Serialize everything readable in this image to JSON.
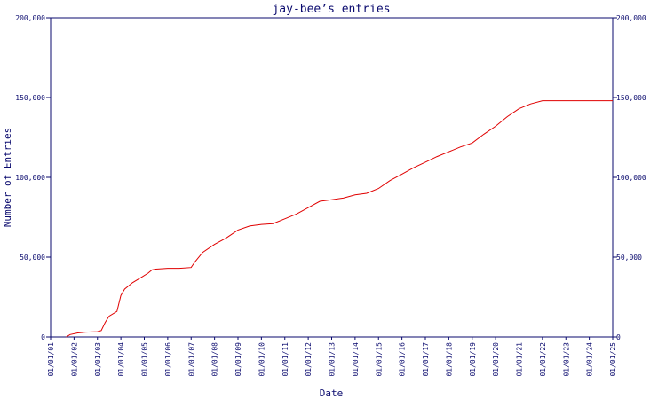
{
  "chart_data": {
    "type": "line",
    "title": "jay-bee’s entries",
    "xlabel": "Date",
    "ylabel": "Number of Entries",
    "ylim": [
      0,
      200000
    ],
    "yticks": [
      0,
      50000,
      100000,
      150000,
      200000
    ],
    "ytick_labels": [
      "0",
      "50,000",
      "100,000",
      "150,000",
      "200,000"
    ],
    "y_axis_mirrored_right": true,
    "xlim": [
      "2001-01-01",
      "2025-01-01"
    ],
    "xtick_labels": [
      "01/01/01",
      "01/01/02",
      "01/01/03",
      "01/01/04",
      "01/01/05",
      "01/01/06",
      "01/01/07",
      "01/01/08",
      "01/01/09",
      "01/01/10",
      "01/01/11",
      "01/01/12",
      "01/01/13",
      "01/01/14",
      "01/01/15",
      "01/01/16",
      "01/01/17",
      "01/01/18",
      "01/01/19",
      "01/01/20",
      "01/01/21",
      "01/01/22",
      "01/01/23",
      "01/01/24",
      "01/01/25"
    ],
    "grid": false,
    "line_color": "#e00000",
    "axis_color": "#0a0a6e",
    "x": [
      "2001-09-01",
      "2001-11-01",
      "2002-03-01",
      "2002-07-01",
      "2003-01-01",
      "2003-03-01",
      "2003-05-01",
      "2003-07-01",
      "2003-11-01",
      "2004-01-01",
      "2004-03-01",
      "2004-07-01",
      "2004-11-01",
      "2005-03-01",
      "2005-05-01",
      "2005-07-01",
      "2006-01-01",
      "2006-07-01",
      "2007-01-01",
      "2007-03-01",
      "2007-07-01",
      "2008-01-01",
      "2008-07-01",
      "2009-01-01",
      "2009-07-01",
      "2010-01-01",
      "2010-07-01",
      "2011-01-01",
      "2011-07-01",
      "2012-01-01",
      "2012-07-01",
      "2013-01-01",
      "2013-07-01",
      "2014-01-01",
      "2014-07-01",
      "2015-01-01",
      "2015-07-01",
      "2016-01-01",
      "2016-07-01",
      "2017-01-01",
      "2017-07-01",
      "2018-01-01",
      "2018-07-01",
      "2019-01-01",
      "2019-07-01",
      "2020-01-01",
      "2020-07-01",
      "2021-01-01",
      "2021-07-01",
      "2022-01-01",
      "2022-07-01",
      "2023-01-01",
      "2023-07-01",
      "2024-01-01",
      "2024-07-01",
      "2025-01-01"
    ],
    "values": [
      0,
      1500,
      2500,
      3000,
      3300,
      4000,
      9000,
      13000,
      16000,
      26000,
      30000,
      34000,
      37000,
      40000,
      42000,
      42500,
      43000,
      43000,
      43500,
      47000,
      53000,
      58000,
      62000,
      67000,
      69500,
      70500,
      71000,
      74000,
      77000,
      81000,
      85000,
      86000,
      87000,
      89000,
      90000,
      93000,
      98000,
      102000,
      106000,
      109500,
      113000,
      116000,
      119000,
      121500,
      127000,
      132000,
      138000,
      143000,
      146000,
      148000,
      148000,
      148000,
      148000,
      148000,
      148000,
      148000
    ]
  }
}
